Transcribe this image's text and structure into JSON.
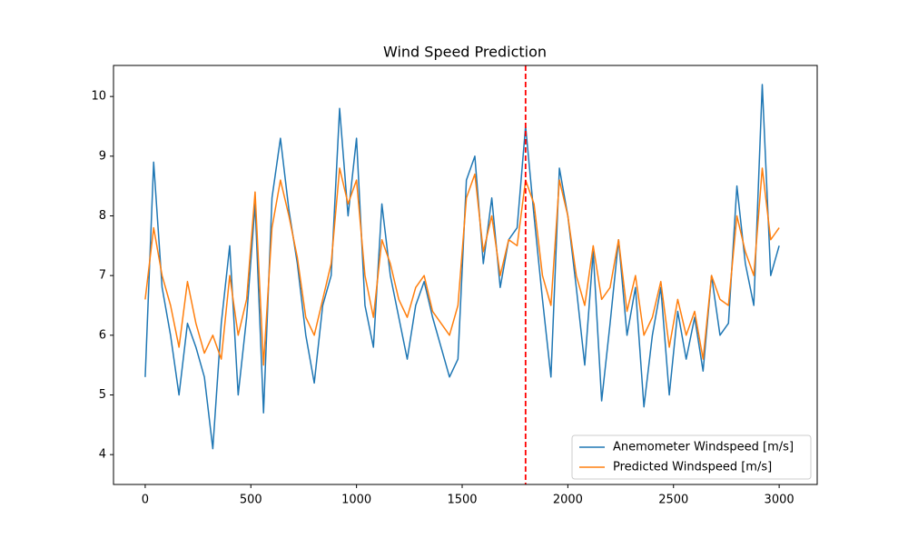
{
  "chart_data": {
    "type": "line",
    "title": "Wind Speed Prediction",
    "x": [
      0,
      40,
      80,
      120,
      160,
      200,
      240,
      280,
      320,
      360,
      400,
      440,
      480,
      520,
      560,
      600,
      640,
      680,
      720,
      760,
      800,
      840,
      880,
      920,
      960,
      1000,
      1040,
      1080,
      1120,
      1160,
      1200,
      1240,
      1280,
      1320,
      1360,
      1400,
      1440,
      1480,
      1520,
      1560,
      1600,
      1640,
      1680,
      1720,
      1760,
      1800,
      1840,
      1880,
      1920,
      1960,
      2000,
      2040,
      2080,
      2120,
      2160,
      2200,
      2240,
      2280,
      2320,
      2360,
      2400,
      2440,
      2480,
      2520,
      2560,
      2600,
      2640,
      2680,
      2720,
      2760,
      2800,
      2840,
      2880,
      2920,
      2960,
      3000
    ],
    "series": [
      {
        "name": "Anemometer Windspeed [m/s]",
        "color": "#1f77b4",
        "values": [
          5.3,
          8.9,
          6.8,
          6.0,
          5.0,
          6.2,
          5.8,
          5.3,
          4.1,
          6.2,
          7.5,
          5.0,
          6.3,
          8.2,
          4.7,
          8.3,
          9.3,
          8.1,
          7.2,
          6.0,
          5.2,
          6.5,
          7.0,
          9.8,
          8.0,
          9.3,
          6.5,
          5.8,
          8.2,
          7.0,
          6.3,
          5.6,
          6.5,
          6.9,
          6.3,
          5.8,
          5.3,
          5.6,
          8.6,
          9.0,
          7.2,
          8.3,
          6.8,
          7.6,
          7.8,
          9.5,
          8.0,
          6.6,
          5.3,
          8.8,
          8.0,
          6.8,
          5.5,
          7.4,
          4.9,
          6.2,
          7.6,
          6.0,
          6.8,
          4.8,
          6.0,
          6.8,
          5.0,
          6.4,
          5.6,
          6.3,
          5.4,
          7.0,
          6.0,
          6.2,
          8.5,
          7.2,
          6.5,
          10.2,
          7.0,
          7.5
        ]
      },
      {
        "name": "Predicted Windspeed [m/s]",
        "color": "#ff7f0e",
        "values": [
          6.6,
          7.8,
          7.0,
          6.5,
          5.8,
          6.9,
          6.2,
          5.7,
          6.0,
          5.6,
          7.0,
          6.0,
          6.6,
          8.4,
          5.5,
          7.8,
          8.6,
          8.0,
          7.3,
          6.3,
          6.0,
          6.6,
          7.2,
          8.8,
          8.2,
          8.6,
          7.0,
          6.3,
          7.6,
          7.2,
          6.6,
          6.3,
          6.8,
          7.0,
          6.4,
          6.2,
          6.0,
          6.5,
          8.3,
          8.7,
          7.4,
          8.0,
          7.0,
          7.6,
          7.5,
          8.6,
          8.2,
          7.0,
          6.5,
          8.6,
          8.0,
          7.0,
          6.5,
          7.5,
          6.6,
          6.8,
          7.6,
          6.4,
          7.0,
          6.0,
          6.3,
          6.9,
          5.8,
          6.6,
          6.0,
          6.4,
          5.6,
          7.0,
          6.6,
          6.5,
          8.0,
          7.4,
          7.0,
          8.8,
          7.6,
          7.8
        ]
      }
    ],
    "xlim": [
      -150,
      3180
    ],
    "xticks": [
      0,
      500,
      1000,
      1500,
      2000,
      2500,
      3000
    ],
    "ylim": [
      3.5,
      10.52
    ],
    "yticks": [
      4,
      5,
      6,
      7,
      8,
      9,
      10
    ],
    "vline": {
      "x": 1800,
      "color": "red"
    },
    "legend": "lower right",
    "grid": false
  }
}
